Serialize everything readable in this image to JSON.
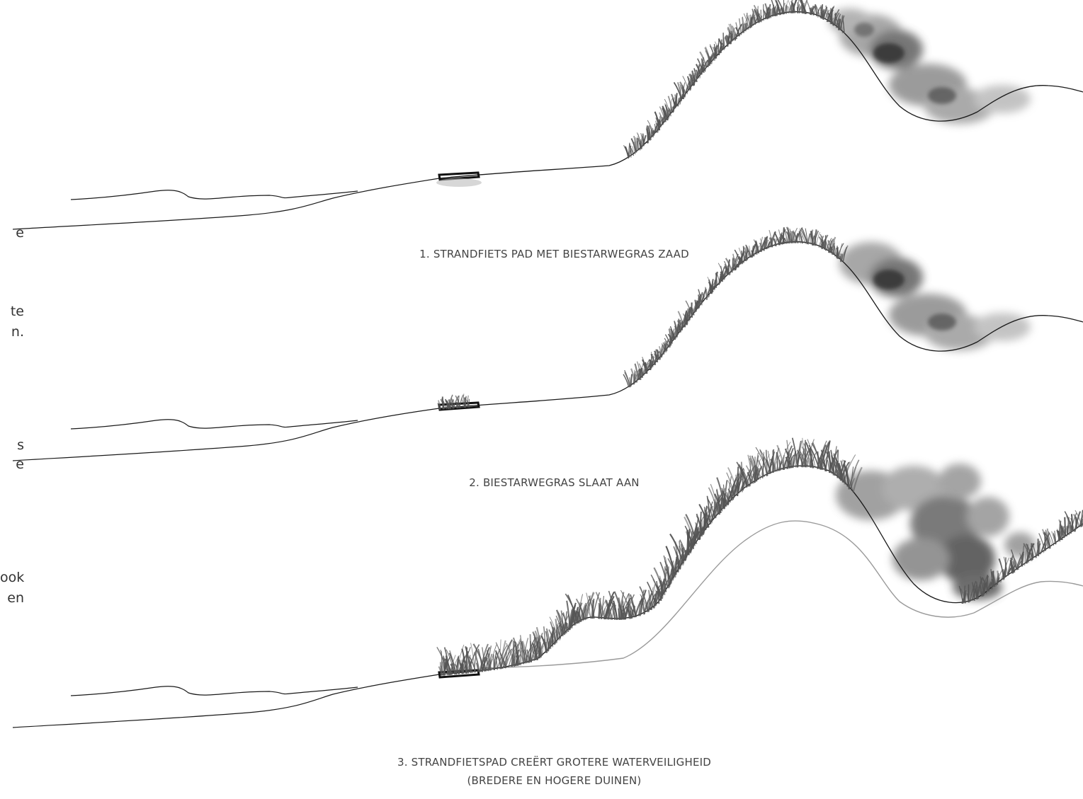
{
  "stages": [
    {
      "caption": "1. STRANDFIETS PAD MET BIESTARWEGRAS ZAAD"
    },
    {
      "caption": "2. BIESTARWEGRAS SLAAT AAN"
    },
    {
      "caption": "3. STRANDFIETSPAD CREËRT GROTERE WATERVEILIGHEID",
      "caption_line2": "(BREDERE EN HOGERE DUINEN)"
    }
  ],
  "left_text_fragments": [
    "e",
    "te",
    "n.",
    "s",
    "e",
    "ook",
    "en"
  ],
  "colors": {
    "line": "#1a1a1a",
    "grass": "#555555",
    "shrub": "#6a6a6a",
    "old_profile": "#9a9a9a"
  }
}
